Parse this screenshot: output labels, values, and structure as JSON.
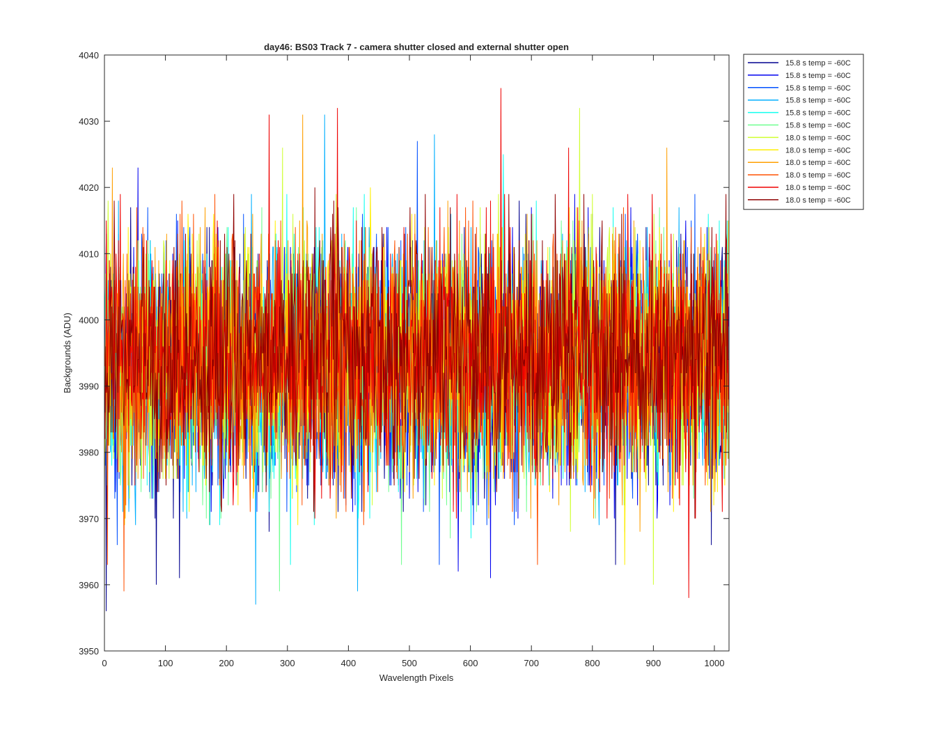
{
  "chart_data": {
    "type": "line",
    "title": "day46: BS03  Track 7 - camera shutter closed and external shutter open",
    "xlabel": "Wavelength Pixels",
    "ylabel": "Backgrounds (ADU)",
    "xlim": [
      0,
      1024
    ],
    "ylim": [
      3950,
      4040
    ],
    "xticks": [
      0,
      100,
      200,
      300,
      400,
      500,
      600,
      700,
      800,
      900,
      1000
    ],
    "yticks": [
      3950,
      3960,
      3970,
      3980,
      3990,
      4000,
      4010,
      4020,
      4030,
      4040
    ],
    "grid": false,
    "legend_position": "outside-top-right",
    "n_points": 1024,
    "series": [
      {
        "name": "15.8 s temp = -60C",
        "color": "#00008f",
        "mean": 3993,
        "std": 9,
        "spikes": [
          [
            0,
            3974
          ],
          [
            3,
            3956
          ],
          [
            85,
            3960
          ],
          [
            123,
            3961
          ],
          [
            838,
            3963
          ],
          [
            995,
            3966
          ]
        ]
      },
      {
        "name": "15.8 s temp = -60C",
        "color": "#0000ef",
        "mean": 3993,
        "std": 9,
        "spikes": [
          [
            55,
            4023
          ],
          [
            633,
            3961
          ],
          [
            580,
            3962
          ]
        ]
      },
      {
        "name": "15.8 s temp = -60C",
        "color": "#0050ff",
        "mean": 3993,
        "std": 9,
        "spikes": [
          [
            513,
            4027
          ],
          [
            549,
            3963
          ]
        ]
      },
      {
        "name": "15.8 s temp = -60C",
        "color": "#00afff",
        "mean": 3993,
        "std": 9,
        "spikes": [
          [
            248,
            3957
          ],
          [
            415,
            3959
          ],
          [
            361,
            4031
          ],
          [
            541,
            4028
          ]
        ]
      },
      {
        "name": "15.8 s temp = -60C",
        "color": "#10ffef",
        "mean": 3993,
        "std": 9,
        "spikes": [
          [
            305,
            3963
          ],
          [
            654,
            4025
          ]
        ]
      },
      {
        "name": "15.8 s temp = -60C",
        "color": "#6fff8f",
        "mean": 3993,
        "std": 9,
        "spikes": [
          [
            287,
            3959
          ],
          [
            487,
            3963
          ]
        ]
      },
      {
        "name": "18.0 s temp = -60C",
        "color": "#cfff2f",
        "mean": 3994,
        "std": 9,
        "spikes": [
          [
            779,
            4032
          ],
          [
            900,
            3960
          ],
          [
            292,
            4026
          ]
        ]
      },
      {
        "name": "18.0 s temp = -60C",
        "color": "#ffef00",
        "mean": 3994,
        "std": 9,
        "spikes": [
          [
            853,
            3963
          ],
          [
            436,
            4020
          ]
        ]
      },
      {
        "name": "18.0 s temp = -60C",
        "color": "#ff9f00",
        "mean": 3994,
        "std": 9,
        "spikes": [
          [
            325,
            4031
          ],
          [
            13,
            4023
          ],
          [
            922,
            4026
          ]
        ]
      },
      {
        "name": "18.0 s temp = -60C",
        "color": "#ff5000",
        "mean": 3994,
        "std": 9,
        "spikes": [
          [
            32,
            3959
          ],
          [
            5,
            3963
          ],
          [
            710,
            3963
          ]
        ]
      },
      {
        "name": "18.0 s temp = -60C",
        "color": "#ef0000",
        "mean": 3995,
        "std": 9,
        "spikes": [
          [
            270,
            4031
          ],
          [
            382,
            4032
          ],
          [
            650,
            4035
          ],
          [
            958,
            3958
          ],
          [
            761,
            4026
          ]
        ]
      },
      {
        "name": "18.0 s temp = -60C",
        "color": "#8f0000",
        "mean": 3995,
        "std": 9,
        "spikes": [
          [
            345,
            4020
          ],
          [
            735,
            3978
          ]
        ]
      }
    ]
  }
}
